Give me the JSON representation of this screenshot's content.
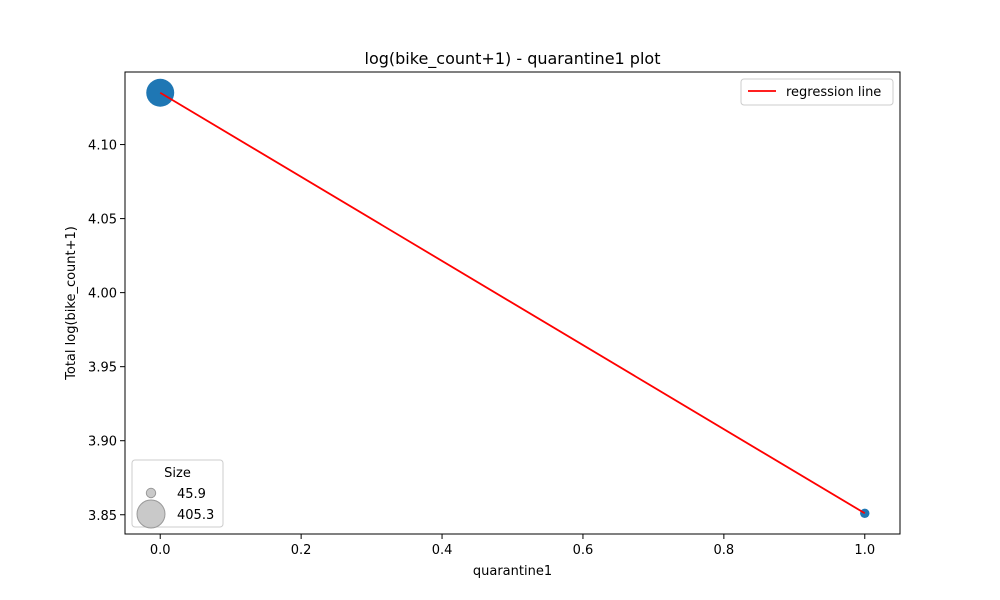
{
  "chart_data": {
    "type": "scatter",
    "title": "log(bike_count+1) - quarantine1 plot",
    "xlabel": "quarantine1",
    "ylabel": "Total log(bike_count+1)",
    "xlim": [
      -0.05,
      1.05
    ],
    "ylim": [
      3.837,
      4.149
    ],
    "x_ticks": [
      0.0,
      0.2,
      0.4,
      0.6,
      0.8,
      1.0
    ],
    "x_tick_labels": [
      "0.0",
      "0.2",
      "0.4",
      "0.6",
      "0.8",
      "1.0"
    ],
    "y_ticks": [
      3.85,
      3.9,
      3.95,
      4.0,
      4.05,
      4.1
    ],
    "y_tick_labels": [
      "3.85",
      "3.90",
      "3.95",
      "4.00",
      "4.05",
      "4.10"
    ],
    "grid": false,
    "points": [
      {
        "x": 0.0,
        "y": 4.135,
        "size": 405.3
      },
      {
        "x": 1.0,
        "y": 3.851,
        "size": 45.9
      }
    ],
    "regression_line": {
      "name": "regression line",
      "x": [
        0.0,
        1.0
      ],
      "y": [
        4.135,
        3.851
      ]
    },
    "legend": {
      "placement": "upper right",
      "label": "regression line"
    },
    "size_legend": {
      "placement": "lower left",
      "title": "Size",
      "entries": [
        {
          "label": "45.9",
          "size": 45.9
        },
        {
          "label": "405.3",
          "size": 405.3
        }
      ]
    },
    "colors": {
      "points": "#1f77b4",
      "regression": "#ff0000",
      "size_legend_marker": "#c0c0c0",
      "size_legend_marker_edge": "#999999",
      "legend_frame": "#cccccc"
    }
  }
}
